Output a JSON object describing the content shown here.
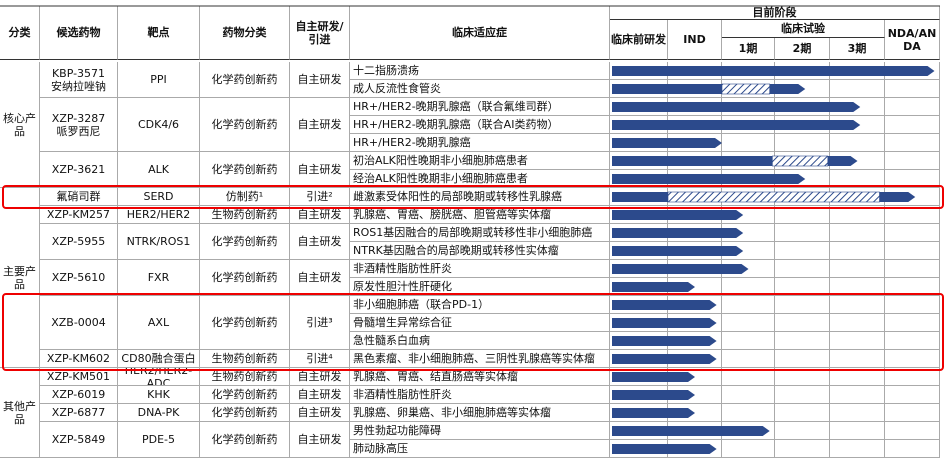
{
  "header": {
    "columns": [
      "分类",
      "候选药物",
      "靶点",
      "药物分类",
      [
        "自主研发/",
        "引进"
      ],
      "临床适应症"
    ],
    "stage_title": "目前阶段",
    "preclinical": "临床前研发",
    "ind": "IND",
    "clinical": "临床试验",
    "phases": [
      "1期",
      "2期",
      "3期"
    ],
    "nda": "NDA/ANDA"
  },
  "groups": [
    {
      "label": "核心产品",
      "drugs": [
        0,
        1,
        2
      ]
    },
    {
      "label": "主要产品",
      "drugs": [
        3,
        4,
        5,
        6,
        7,
        8
      ]
    },
    {
      "label": "其他产品",
      "drugs": [
        9,
        10,
        11,
        12
      ]
    }
  ],
  "drugs": [
    {
      "name": "KBP-3571",
      "alias": "安纳拉唑钠",
      "target": "PPI",
      "class": "化学药创新药",
      "source": "自主研发",
      "indications": [
        {
          "text": "十二指肠溃疡",
          "progress": 5.9
        },
        {
          "text": "成人反流性食管炎",
          "progress": 3.55,
          "hatch": [
            2.0,
            2.9
          ]
        }
      ]
    },
    {
      "name": "XZP-3287",
      "alias": "哌罗西尼",
      "target": "CDK4/6",
      "class": "化学药创新药",
      "source": "自主研发",
      "indications": [
        {
          "text": "HR+/HER2-晚期乳腺癌（联合氟维司群）",
          "progress": 4.55
        },
        {
          "text": "HR+/HER2-晚期乳腺癌（联合AI类药物）",
          "progress": 4.55
        },
        {
          "text": "HR+/HER2-晚期乳腺癌",
          "progress": 2.0
        }
      ]
    },
    {
      "name": "XZP-3621",
      "target": "ALK",
      "class": "化学药创新药",
      "source": "自主研发",
      "indications": [
        {
          "text": "初治ALK阳性晚期非小细胞肺癌患者",
          "progress": 4.5,
          "hatch": [
            2.95,
            3.96
          ]
        },
        {
          "text": "经治ALK阳性晚期非小细胞肺癌患者",
          "progress": 3.55
        }
      ]
    },
    {
      "name": "氟硝司群",
      "target": "SERD",
      "class": "仿制药¹",
      "source": "引进²",
      "highlight": true,
      "indications": [
        {
          "text": "雌激素受体阳性的局部晚期或转移性乳腺癌",
          "progress": 5.55,
          "hatch": [
            1.0,
            4.9
          ]
        }
      ]
    },
    {
      "name": "XZP-KM257",
      "target": "HER2/HER2",
      "class": "生物药创新药",
      "source": "自主研发",
      "indications": [
        {
          "text": "乳腺癌、胃癌、膀胱癌、胆管癌等实体瘤",
          "progress": 2.4
        }
      ]
    },
    {
      "name": "XZP-5955",
      "target": "NTRK/ROS1",
      "class": "化学药创新药",
      "source": "自主研发",
      "indications": [
        {
          "text": "ROS1基因融合的局部晚期或转移性非小细胞肺癌",
          "progress": 2.4
        },
        {
          "text": "NTRK基因融合的局部晚期或转移性实体瘤",
          "progress": 2.4
        }
      ]
    },
    {
      "name": "XZP-5610",
      "target": "FXR",
      "class": "化学药创新药",
      "source": "自主研发",
      "indications": [
        {
          "text": "非酒精性脂肪性肝炎",
          "progress": 2.5
        },
        {
          "text": "原发性胆汁性肝硬化",
          "progress": 1.5
        }
      ]
    },
    {
      "name": "XZB-0004",
      "target": "AXL",
      "class": "化学药创新药",
      "source": "引进³",
      "highlight": true,
      "indications": [
        {
          "text": "非小细胞肺癌（联合PD-1）",
          "progress": 1.9
        },
        {
          "text": "骨髓增生异常综合征",
          "progress": 1.9
        },
        {
          "text": "急性髓系白血病",
          "progress": 1.9
        }
      ]
    },
    {
      "name": "XZP-KM602",
      "target": "CD80融合蛋白",
      "class": "生物药创新药",
      "source": "引进⁴",
      "highlight": true,
      "indications": [
        {
          "text": "黑色素瘤、非小细胞肺癌、三阴性乳腺癌等实体瘤",
          "progress": 1.9
        }
      ]
    },
    {
      "name": "XZP-KM501",
      "target": "HER2/HER2-ADC",
      "class": "生物药创新药",
      "source": "自主研发",
      "indications": [
        {
          "text": "乳腺癌、胃癌、结直肠癌等实体瘤",
          "progress": 1.5
        }
      ]
    },
    {
      "name": "XZP-6019",
      "target": "KHK",
      "class": "化学药创新药",
      "source": "自主研发",
      "indications": [
        {
          "text": "非酒精性脂肪性肝炎",
          "progress": 1.5
        }
      ]
    },
    {
      "name": "XZP-6877",
      "target": "DNA-PK",
      "class": "化学药创新药",
      "source": "自主研发",
      "indications": [
        {
          "text": "乳腺癌、卵巢癌、非小细胞肺癌等实体瘤",
          "progress": 1.5
        }
      ]
    },
    {
      "name": "XZP-5849",
      "target": "PDE-5",
      "class": "化学药创新药",
      "source": "自主研发",
      "indications": [
        {
          "text": "男性勃起功能障碍",
          "progress": 2.9
        },
        {
          "text": "肺动脉高压",
          "progress": 1.9
        }
      ]
    }
  ]
}
